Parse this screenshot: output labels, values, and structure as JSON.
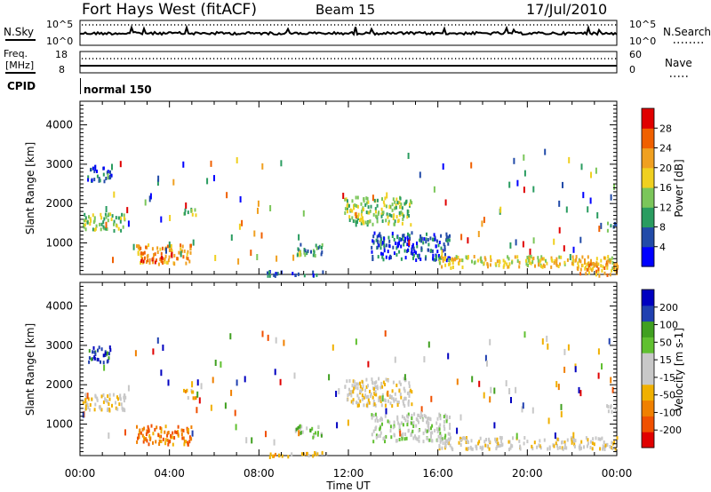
{
  "header": {
    "station": "Fort Hays West (fitACF)",
    "beam": "Beam 15",
    "date": "17/Jul/2010"
  },
  "strip1": {
    "left_label": "N.Sky",
    "right_label": "N.Search",
    "left_top": "10^5",
    "left_bot": "10^0",
    "right_top": "10^5",
    "right_bot": "10^0"
  },
  "strip2": {
    "left_label_1": "Freq.",
    "left_label_2": "[MHz]",
    "right_label": "Nave",
    "left_top": "18",
    "left_bot": "8",
    "right_top": "60",
    "right_bot": "0"
  },
  "cpid": {
    "label": "CPID",
    "mode": "normal 150"
  },
  "colors": {
    "power": [
      "#0000ff",
      "#224ba8",
      "#2a9c60",
      "#7bc65a",
      "#f0d020",
      "#f0a020",
      "#f06000",
      "#e00000"
    ],
    "velocity": [
      "#e00000",
      "#f05000",
      "#f08000",
      "#f0b000",
      "#c8c8c8",
      "#c8c8c8",
      "#60c030",
      "#40a020",
      "#2040b0",
      "#0000c0"
    ]
  },
  "chart_data": [
    {
      "type": "heatmap",
      "name": "power",
      "xlabel": "",
      "ylabel": "Slant Range [km]",
      "ylim": [
        200,
        4600
      ],
      "xlim": [
        0,
        24
      ],
      "y_ticks": [
        "1000",
        "2000",
        "3000",
        "4000"
      ],
      "colorbar_label": "Power [dB]",
      "colorbar_ticks": [
        "4",
        "8",
        "12",
        "16",
        "20",
        "24",
        "28"
      ],
      "scatter_regions": [
        {
          "t0": 0.1,
          "t1": 2.0,
          "r0": 1350,
          "r1": 1800,
          "level": 3
        },
        {
          "t0": 0.3,
          "t1": 1.4,
          "r0": 2600,
          "r1": 3000,
          "level": 1
        },
        {
          "t0": 2.5,
          "t1": 5.0,
          "r0": 500,
          "r1": 1000,
          "level": 5
        },
        {
          "t0": 2.7,
          "t1": 3.7,
          "r0": 550,
          "r1": 700,
          "level": 7
        },
        {
          "t0": 4.5,
          "t1": 5.2,
          "r0": 1700,
          "r1": 1900,
          "level": 3
        },
        {
          "t0": 8.3,
          "t1": 11.0,
          "r0": 200,
          "r1": 320,
          "level": 1
        },
        {
          "t0": 9.6,
          "t1": 10.8,
          "r0": 700,
          "r1": 1000,
          "level": 2
        },
        {
          "t0": 11.8,
          "t1": 14.8,
          "r0": 1500,
          "r1": 2200,
          "level": 3
        },
        {
          "t0": 13.0,
          "t1": 16.5,
          "r0": 600,
          "r1": 1300,
          "level": 1
        },
        {
          "t0": 16.0,
          "t1": 24.0,
          "r0": 400,
          "r1": 700,
          "level": 4
        },
        {
          "t0": 22.2,
          "t1": 24.0,
          "r0": 200,
          "r1": 600,
          "level": 5
        },
        {
          "t0": 23.5,
          "t1": 24.0,
          "r0": 1350,
          "r1": 1550,
          "level": 2
        }
      ]
    },
    {
      "type": "heatmap",
      "name": "velocity",
      "xlabel": "Time UT",
      "ylabel": "Slant Range [km]",
      "ylim": [
        200,
        4600
      ],
      "xlim": [
        0,
        24
      ],
      "x_ticks": [
        "00:00",
        "04:00",
        "08:00",
        "12:00",
        "16:00",
        "20:00",
        "00:00"
      ],
      "y_ticks": [
        "1000",
        "2000",
        "3000",
        "4000"
      ],
      "colorbar_label": "Velocity [m s-1]",
      "colorbar_ticks": [
        "-200",
        "-100",
        "-50",
        "-15",
        "15",
        "50",
        "100",
        "200"
      ],
      "scatter_regions": [
        {
          "t0": 0.1,
          "t1": 2.0,
          "r0": 1350,
          "r1": 1800,
          "level": 4
        },
        {
          "t0": 0.3,
          "t1": 1.4,
          "r0": 2600,
          "r1": 3000,
          "level": 8
        },
        {
          "t0": 2.5,
          "t1": 5.0,
          "r0": 500,
          "r1": 1000,
          "level": 2
        },
        {
          "t0": 4.5,
          "t1": 5.2,
          "r0": 1700,
          "r1": 1900,
          "level": 3
        },
        {
          "t0": 8.3,
          "t1": 11.0,
          "r0": 200,
          "r1": 320,
          "level": 3
        },
        {
          "t0": 9.6,
          "t1": 10.8,
          "r0": 700,
          "r1": 1000,
          "level": 6
        },
        {
          "t0": 11.8,
          "t1": 14.8,
          "r0": 1500,
          "r1": 2200,
          "level": 4
        },
        {
          "t0": 13.0,
          "t1": 16.5,
          "r0": 600,
          "r1": 1300,
          "level": 5
        },
        {
          "t0": 16.0,
          "t1": 24.0,
          "r0": 400,
          "r1": 700,
          "level": 4
        },
        {
          "t0": 23.5,
          "t1": 24.0,
          "r0": 1350,
          "r1": 1550,
          "level": 4
        }
      ]
    }
  ]
}
